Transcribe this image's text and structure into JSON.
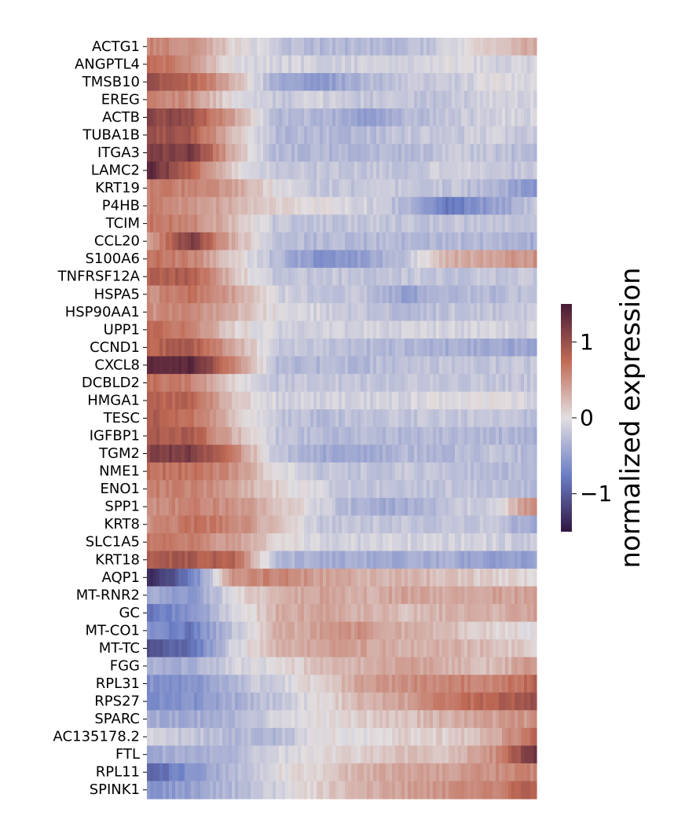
{
  "chart_data": {
    "type": "heatmap",
    "title": "",
    "xlabel": "",
    "ylabel": "",
    "genes": [
      "ACTG1",
      "ANGPTL4",
      "TMSB10",
      "EREG",
      "ACTB",
      "TUBA1B",
      "ITGA3",
      "LAMC2",
      "KRT19",
      "P4HB",
      "TCIM",
      "CCL20",
      "S100A6",
      "TNFRSF12A",
      "HSPA5",
      "HSP90AA1",
      "UPP1",
      "CCND1",
      "CXCL8",
      "DCBLD2",
      "HMGA1",
      "TESC",
      "IGFBP1",
      "TGM2",
      "NME1",
      "ENO1",
      "SPP1",
      "KRT8",
      "SLC1A5",
      "KRT18",
      "AQP1",
      "MT-RNR2",
      "GC",
      "MT-CO1",
      "MT-TC",
      "FGG",
      "RPL31",
      "RPS27",
      "SPARC",
      "AC135178.2",
      "FTL",
      "RPL11",
      "SPINK1"
    ],
    "column_bins": 10,
    "values": [
      [
        0.6,
        0.5,
        0.1,
        -0.2,
        -0.3,
        -0.3,
        -0.3,
        -0.1,
        0.1,
        0.4
      ],
      [
        0.8,
        0.5,
        0.0,
        -0.1,
        -0.1,
        -0.1,
        -0.1,
        0.0,
        -0.1,
        -0.1
      ],
      [
        1.0,
        0.8,
        0.3,
        -0.4,
        -0.6,
        -0.3,
        -0.2,
        -0.2,
        0.0,
        -0.1
      ],
      [
        0.6,
        0.5,
        0.0,
        -0.2,
        -0.1,
        -0.2,
        -0.2,
        -0.2,
        -0.1,
        -0.1
      ],
      [
        1.1,
        1.0,
        0.4,
        -0.3,
        -0.3,
        -0.5,
        -0.3,
        -0.2,
        -0.1,
        -0.1
      ],
      [
        1.0,
        0.9,
        0.2,
        -0.3,
        -0.3,
        -0.3,
        -0.2,
        -0.2,
        -0.1,
        -0.2
      ],
      [
        1.1,
        1.2,
        0.3,
        -0.3,
        -0.3,
        -0.3,
        -0.3,
        -0.2,
        -0.2,
        -0.3
      ],
      [
        1.4,
        0.8,
        0.1,
        -0.2,
        -0.2,
        -0.2,
        -0.2,
        -0.1,
        -0.2,
        -0.2
      ],
      [
        0.6,
        0.6,
        0.4,
        0.0,
        -0.2,
        -0.2,
        -0.2,
        -0.2,
        -0.3,
        -0.6
      ],
      [
        0.6,
        0.5,
        0.3,
        0.1,
        0.0,
        -0.1,
        -0.3,
        -0.8,
        -0.5,
        -0.2
      ],
      [
        0.7,
        0.6,
        0.2,
        -0.2,
        -0.2,
        -0.2,
        -0.2,
        -0.2,
        -0.2,
        -0.2
      ],
      [
        0.3,
        1.2,
        0.3,
        -0.2,
        -0.3,
        -0.3,
        -0.3,
        -0.3,
        -0.3,
        -0.4
      ],
      [
        0.7,
        0.6,
        0.1,
        -0.3,
        -0.6,
        -0.5,
        -0.2,
        0.3,
        0.4,
        0.5
      ],
      [
        0.8,
        0.9,
        0.2,
        -0.2,
        -0.2,
        -0.2,
        -0.2,
        -0.2,
        -0.2,
        -0.2
      ],
      [
        0.5,
        0.7,
        0.4,
        -0.1,
        -0.2,
        -0.2,
        -0.5,
        -0.3,
        -0.3,
        -0.2
      ],
      [
        0.5,
        0.6,
        0.3,
        0.0,
        -0.1,
        -0.2,
        -0.3,
        -0.2,
        -0.2,
        -0.2
      ],
      [
        0.8,
        0.6,
        0.1,
        -0.1,
        -0.1,
        -0.1,
        -0.1,
        -0.1,
        -0.1,
        -0.1
      ],
      [
        0.8,
        0.9,
        0.4,
        -0.2,
        -0.2,
        -0.3,
        -0.3,
        -0.4,
        -0.4,
        -0.5
      ],
      [
        1.3,
        1.4,
        0.6,
        -0.3,
        -0.3,
        -0.3,
        -0.2,
        -0.2,
        -0.2,
        -0.2
      ],
      [
        0.7,
        0.6,
        0.1,
        -0.2,
        -0.2,
        -0.2,
        -0.2,
        -0.2,
        -0.2,
        -0.2
      ],
      [
        0.8,
        0.8,
        0.2,
        -0.1,
        -0.1,
        -0.1,
        -0.1,
        0.0,
        0.0,
        -0.1
      ],
      [
        0.9,
        0.7,
        0.2,
        -0.2,
        -0.3,
        -0.2,
        -0.2,
        -0.2,
        -0.2,
        -0.3
      ],
      [
        0.9,
        0.9,
        0.3,
        -0.2,
        -0.3,
        -0.3,
        -0.3,
        -0.3,
        -0.3,
        -0.4
      ],
      [
        1.1,
        1.2,
        0.6,
        -0.2,
        -0.4,
        -0.4,
        -0.3,
        -0.3,
        -0.2,
        -0.3
      ],
      [
        0.7,
        0.7,
        0.5,
        0.0,
        -0.2,
        -0.2,
        -0.2,
        -0.2,
        -0.3,
        -0.3
      ],
      [
        0.6,
        0.6,
        0.4,
        0.1,
        -0.1,
        -0.2,
        -0.2,
        -0.2,
        -0.2,
        -0.3
      ],
      [
        0.5,
        0.6,
        0.5,
        0.2,
        -0.1,
        -0.4,
        -0.4,
        -0.2,
        -0.1,
        0.6
      ],
      [
        0.5,
        0.7,
        0.6,
        0.2,
        -0.2,
        -0.2,
        -0.2,
        -0.2,
        -0.2,
        -0.5
      ],
      [
        0.7,
        0.6,
        0.4,
        0.1,
        -0.1,
        -0.1,
        -0.1,
        -0.1,
        -0.1,
        -0.2
      ],
      [
        0.9,
        0.9,
        0.8,
        -0.3,
        -0.4,
        -0.4,
        -0.4,
        -0.4,
        -0.5,
        -0.5
      ],
      [
        -1.4,
        -0.8,
        0.5,
        0.6,
        0.4,
        0.3,
        0.3,
        0.2,
        0.1,
        0.0
      ],
      [
        -0.4,
        -0.6,
        0.0,
        0.3,
        0.4,
        0.3,
        0.4,
        0.3,
        0.4,
        0.4
      ],
      [
        -0.8,
        -0.6,
        -0.1,
        0.3,
        0.4,
        0.3,
        0.2,
        0.3,
        0.3,
        0.4
      ],
      [
        -0.6,
        -0.8,
        -0.2,
        0.3,
        0.4,
        0.5,
        0.3,
        0.2,
        0.1,
        0.0
      ],
      [
        -1.1,
        -0.9,
        -0.1,
        0.3,
        0.4,
        0.4,
        0.3,
        0.3,
        0.2,
        0.1
      ],
      [
        -0.3,
        -0.4,
        -0.1,
        0.0,
        0.2,
        0.3,
        0.4,
        0.3,
        0.2,
        0.5
      ],
      [
        -0.6,
        -0.6,
        -0.3,
        -0.1,
        0.1,
        0.4,
        0.5,
        0.6,
        0.6,
        0.8
      ],
      [
        -0.6,
        -0.6,
        -0.4,
        -0.2,
        0.0,
        0.3,
        0.4,
        0.7,
        0.8,
        1.0
      ],
      [
        -0.4,
        -0.4,
        -0.3,
        -0.1,
        0.0,
        0.1,
        0.2,
        0.3,
        0.4,
        0.5
      ],
      [
        -0.1,
        -0.2,
        -0.3,
        -0.3,
        0.0,
        0.0,
        0.1,
        0.1,
        0.3,
        0.8
      ],
      [
        -0.4,
        -0.4,
        -0.3,
        -0.1,
        0.0,
        0.1,
        0.2,
        0.2,
        0.5,
        1.3
      ],
      [
        -1.0,
        -0.6,
        -0.3,
        0.0,
        0.1,
        0.3,
        0.4,
        0.4,
        0.5,
        0.6
      ],
      [
        -0.6,
        -0.5,
        -0.3,
        -0.1,
        0.1,
        0.3,
        0.4,
        0.5,
        0.6,
        0.9
      ]
    ],
    "vmin": -1.5,
    "vmax": 1.5,
    "colormap": "twilight_shifted",
    "colorbar": {
      "label": "normalized expression",
      "ticks": [
        -1,
        0,
        1
      ],
      "tick_labels": [
        "−1",
        "0",
        "1"
      ]
    },
    "colors": {
      "low": "#2f1642",
      "mid_low": "#6c7fc6",
      "center": "#e2dee0",
      "mid_high": "#c06a55",
      "high": "#461a36"
    }
  }
}
